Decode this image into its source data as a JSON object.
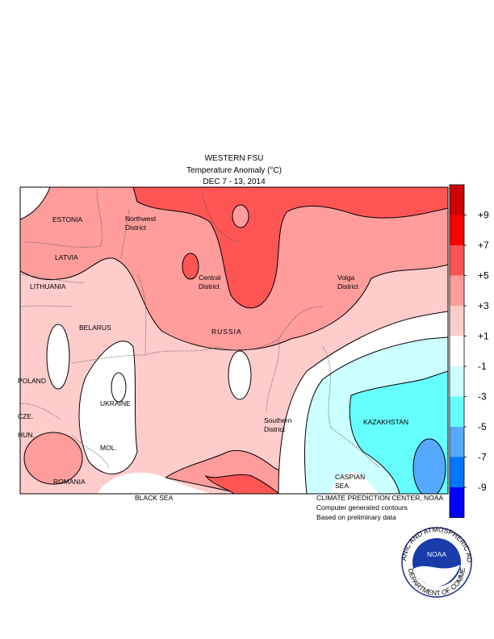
{
  "header": {
    "lines": [
      "WESTERN FSU",
      "Temperature Anomaly (°C)",
      "DEC 7 - 13, 2014"
    ]
  },
  "labels": [
    "ESTONIA",
    "LATVIA",
    "LITHUANIA",
    "BELARUS",
    "POLAND",
    "CZE.",
    "HUN.",
    "UKRAINE",
    "MOL.",
    "ROMANIA",
    "BLACK SEA",
    "KAZAKHSTAN",
    "RUSSIA"
  ],
  "districts": [
    {
      "lines": [
        "Northwest",
        "District"
      ]
    },
    {
      "lines": [
        "Central",
        "District"
      ]
    },
    {
      "lines": [
        "Volga",
        "District"
      ]
    },
    {
      "lines": [
        "Southern",
        "District"
      ]
    },
    {
      "lines": [
        "CASPIAN",
        "SEA"
      ]
    }
  ],
  "colorbar": {
    "colors": [
      "#cc0000",
      "#ff0000",
      "#ff5555",
      "#ff9c9c",
      "#ffcccc",
      "#ffffff",
      "#ccffff",
      "#66ffff",
      "#55aaff",
      "#0077ff",
      "#0000ff"
    ],
    "ticks": [
      {
        "value": 9,
        "label": "+9"
      },
      {
        "value": 7,
        "label": "+7"
      },
      {
        "value": 5,
        "label": "+5"
      },
      {
        "value": 3,
        "label": "+3"
      },
      {
        "value": 1,
        "label": "+1"
      },
      -1,
      -3,
      -5,
      -7,
      -9
    ]
  },
  "credits": [
    "CLIMATE PREDICTION CENTER, NOAA",
    "Computer generated contours",
    "Based on preliminary data"
  ],
  "logo": {
    "name": "NOAA",
    "ring_top": "NATIONAL OCEANIC AND ATMOSPHERIC ADMINISTRATION",
    "ring_bottom": "U.S. DEPARTMENT OF COMMERCE"
  }
}
